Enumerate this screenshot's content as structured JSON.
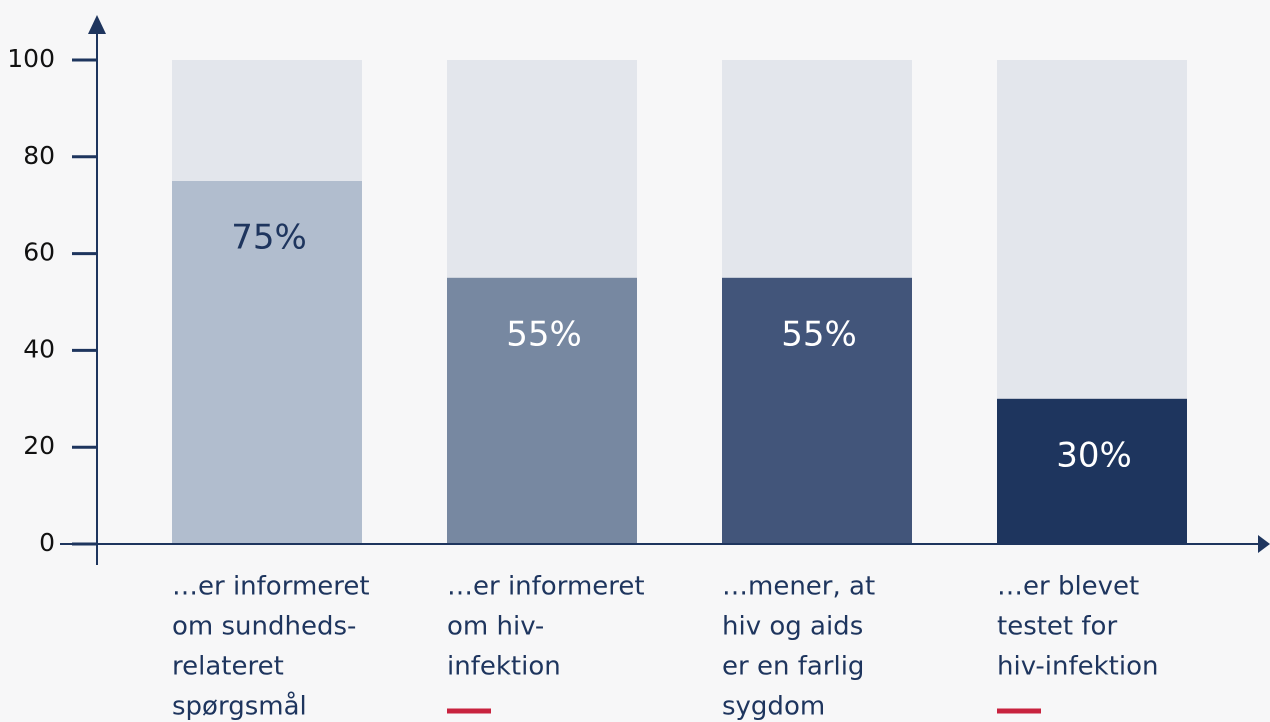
{
  "chart_data": {
    "type": "bar",
    "categories": [
      [
        "…er informeret",
        "om sundheds-",
        "relateret",
        "spørgsmål"
      ],
      [
        "…er informeret",
        "om hiv-",
        "infektion"
      ],
      [
        "…mener, at",
        "hiv og aids",
        "er en farlig",
        "sygdom"
      ],
      [
        "…er blevet",
        "testet for",
        "hiv-infektion"
      ]
    ],
    "values": [
      75,
      55,
      55,
      30
    ],
    "value_labels": [
      "75%",
      "55%",
      "55%",
      "30%"
    ],
    "colors": [
      "#b1bdce",
      "#7788a1",
      "#42557a",
      "#1e355e"
    ],
    "label_colors": [
      "#1e355e",
      "#ffffff",
      "#ffffff",
      "#ffffff"
    ],
    "background_color": "#e3e6ec",
    "ylim": [
      0,
      100
    ],
    "yticks": [
      0,
      20,
      40,
      60,
      80,
      100
    ]
  }
}
